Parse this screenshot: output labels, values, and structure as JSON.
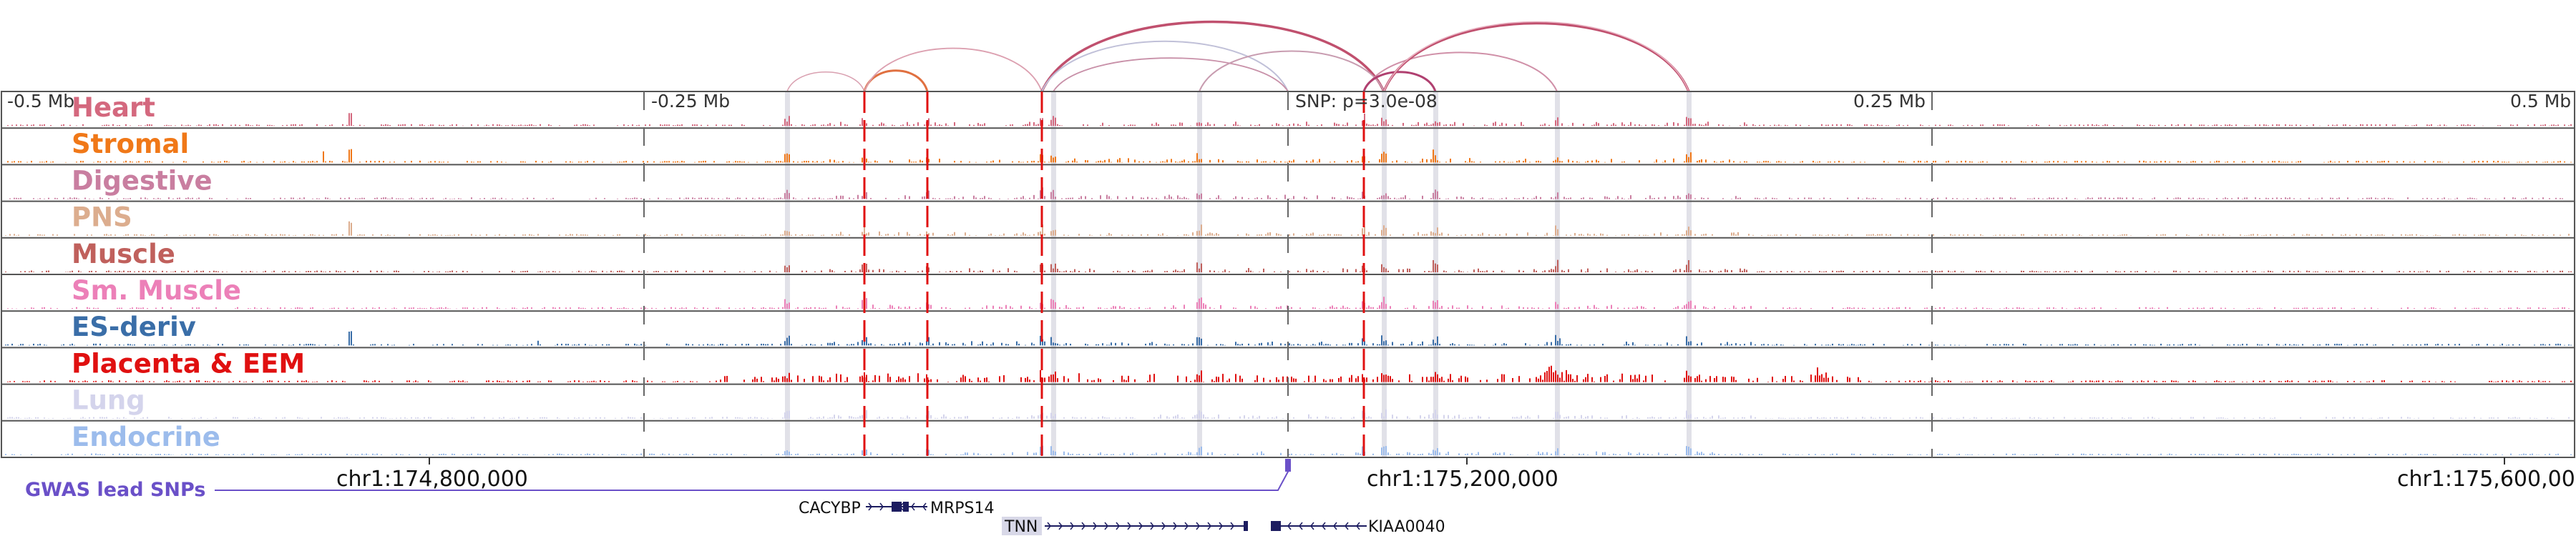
{
  "scale_labels": [
    "-0.5 Mb",
    "-0.25 Mb",
    "0.25 Mb",
    "0.5 Mb"
  ],
  "snp_label": "SNP: p=3.0e-08",
  "tracks": [
    {
      "name": "Heart",
      "color": "#d4687e"
    },
    {
      "name": "Stromal",
      "color": "#f07818"
    },
    {
      "name": "Digestive",
      "color": "#c97ea0"
    },
    {
      "name": "PNS",
      "color": "#dcad8e"
    },
    {
      "name": "Muscle",
      "color": "#c0605c"
    },
    {
      "name": "Sm. Muscle",
      "color": "#ec80b8"
    },
    {
      "name": "ES-deriv",
      "color": "#3a6ea8"
    },
    {
      "name": "Placenta & EEM",
      "color": "#e01010"
    },
    {
      "name": "Lung",
      "color": "#d4d4ec"
    },
    {
      "name": "Endocrine",
      "color": "#9cbcec"
    }
  ],
  "gwas_label": "GWAS lead SNPs",
  "gwas_color": "#6a50c8",
  "coordinates": [
    "chr1:174,800,000",
    "chr1:175,200,000",
    "chr1:175,600,000"
  ],
  "genes": [
    {
      "name": "CACYBP",
      "strand": "+"
    },
    {
      "name": "MRPS14",
      "strand": "-"
    },
    {
      "name": "TNN",
      "strand": "+",
      "highlighted": true
    },
    {
      "name": "KIAA0040",
      "strand": "-"
    }
  ],
  "arc_color": "#c0506e",
  "vline_color": "#e01010"
}
